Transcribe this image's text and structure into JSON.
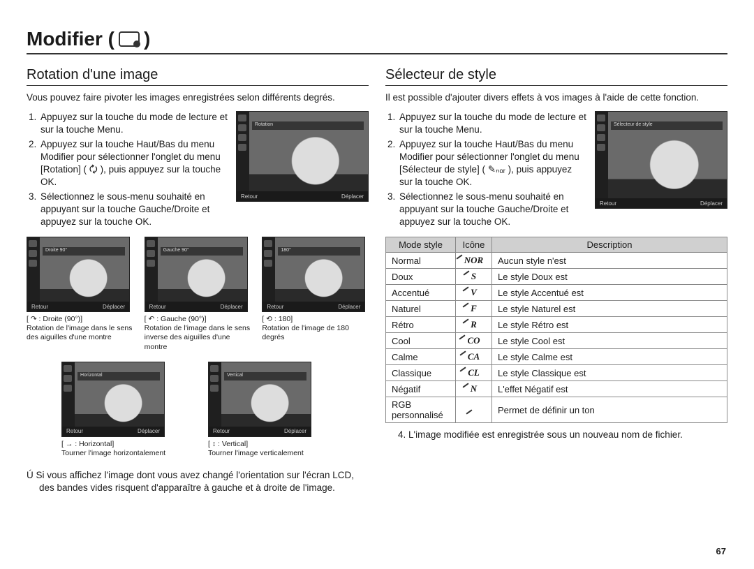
{
  "page": {
    "title_prefix": "Modifier (",
    "title_suffix": " )",
    "number": "67"
  },
  "left": {
    "section_title": "Rotation d'une image",
    "intro": "Vous pouvez faire pivoter les images enregistrées selon différents degrés.",
    "steps": [
      "Appuyez sur la touche du mode de lecture et sur la touche Menu.",
      "Appuyez sur la touche Haut/Bas du menu Modifier pour sélectionner l'onglet du menu [Rotation] ( 🗘 ), puis appuyez sur la touche OK.",
      "Sélectionnez le sous-menu souhaité en appuyant sur la touche Gauche/Droite et appuyez sur la touche OK."
    ],
    "main_thumb": {
      "top_label": "Rotation",
      "bottom_left": "Retour",
      "bottom_right": "Déplacer"
    },
    "row1": [
      {
        "top_label": "Droite 90°",
        "bottom_left": "Retour",
        "bottom_right": "Déplacer",
        "cap_title": "[ ↷ : Droite (90°)]",
        "cap_body": "Rotation de l'image dans le sens des aiguilles d'une montre"
      },
      {
        "top_label": "Gauche 90°",
        "bottom_left": "Retour",
        "bottom_right": "Déplacer",
        "cap_title": "[ ↶ : Gauche (90°)]",
        "cap_body": "Rotation de l'image dans le sens inverse des aiguilles d'une montre"
      },
      {
        "top_label": "180°",
        "bottom_left": "Retour",
        "bottom_right": "Déplacer",
        "cap_title": "[ ⟲ : 180]",
        "cap_body": "Rotation de l'image de 180 degrés"
      }
    ],
    "row2": [
      {
        "top_label": "Horizontal",
        "bottom_left": "Retour",
        "bottom_right": "Déplacer",
        "cap_title": "[ → : Horizontal]",
        "cap_body": "Tourner l'image horizontalement"
      },
      {
        "top_label": "Vertical",
        "bottom_left": "Retour",
        "bottom_right": "Déplacer",
        "cap_title": "[ ↕ : Vertical]",
        "cap_body": "Tourner l'image verticalement"
      }
    ],
    "note": "Ú Si vous affichez l'image dont vous avez changé l'orientation sur l'écran LCD, des bandes vides risquent d'apparaître à gauche et à droite de l'image."
  },
  "right": {
    "section_title": "Sélecteur de style",
    "intro": "Il est possible d'ajouter divers effets à vos images à l'aide de cette fonction.",
    "steps": [
      "Appuyez sur la touche du mode de lecture et sur la touche Menu.",
      "Appuyez sur la touche Haut/Bas du menu Modifier pour sélectionner l'onglet du menu [Sélecteur de style] ( ✎ₙₒᵣ ), puis appuyez sur la touche OK.",
      "Sélectionnez le sous-menu souhaité en appuyant sur la touche Gauche/Droite et appuyez sur la touche OK."
    ],
    "main_thumb": {
      "top_label": "Sélecteur de style",
      "bottom_left": "Retour",
      "bottom_right": "Déplacer"
    },
    "table": {
      "headers": [
        "Mode style",
        "Icône",
        "Description"
      ],
      "rows": [
        {
          "mode": "Normal",
          "icon_sub": "NOR",
          "desc": "Aucun style n'est"
        },
        {
          "mode": "Doux",
          "icon_sub": "S",
          "desc": "Le style Doux est"
        },
        {
          "mode": "Accentué",
          "icon_sub": "V",
          "desc": "Le style Accentué est"
        },
        {
          "mode": "Naturel",
          "icon_sub": "F",
          "desc": "Le style Naturel est"
        },
        {
          "mode": "Rétro",
          "icon_sub": "R",
          "desc": "Le style Rétro est"
        },
        {
          "mode": "Cool",
          "icon_sub": "CO",
          "desc": "Le style Cool est"
        },
        {
          "mode": "Calme",
          "icon_sub": "CA",
          "desc": "Le style Calme est"
        },
        {
          "mode": "Classique",
          "icon_sub": "CL",
          "desc": "Le style Classique est"
        },
        {
          "mode": "Négatif",
          "icon_sub": "N",
          "desc": "L'effet Négatif est"
        },
        {
          "mode": "RGB personnalisé",
          "icon_sub": "",
          "desc": "Permet de définir un ton"
        }
      ]
    },
    "after_note": "4. L'image modifiée est enregistrée sous un nouveau nom de fichier."
  }
}
